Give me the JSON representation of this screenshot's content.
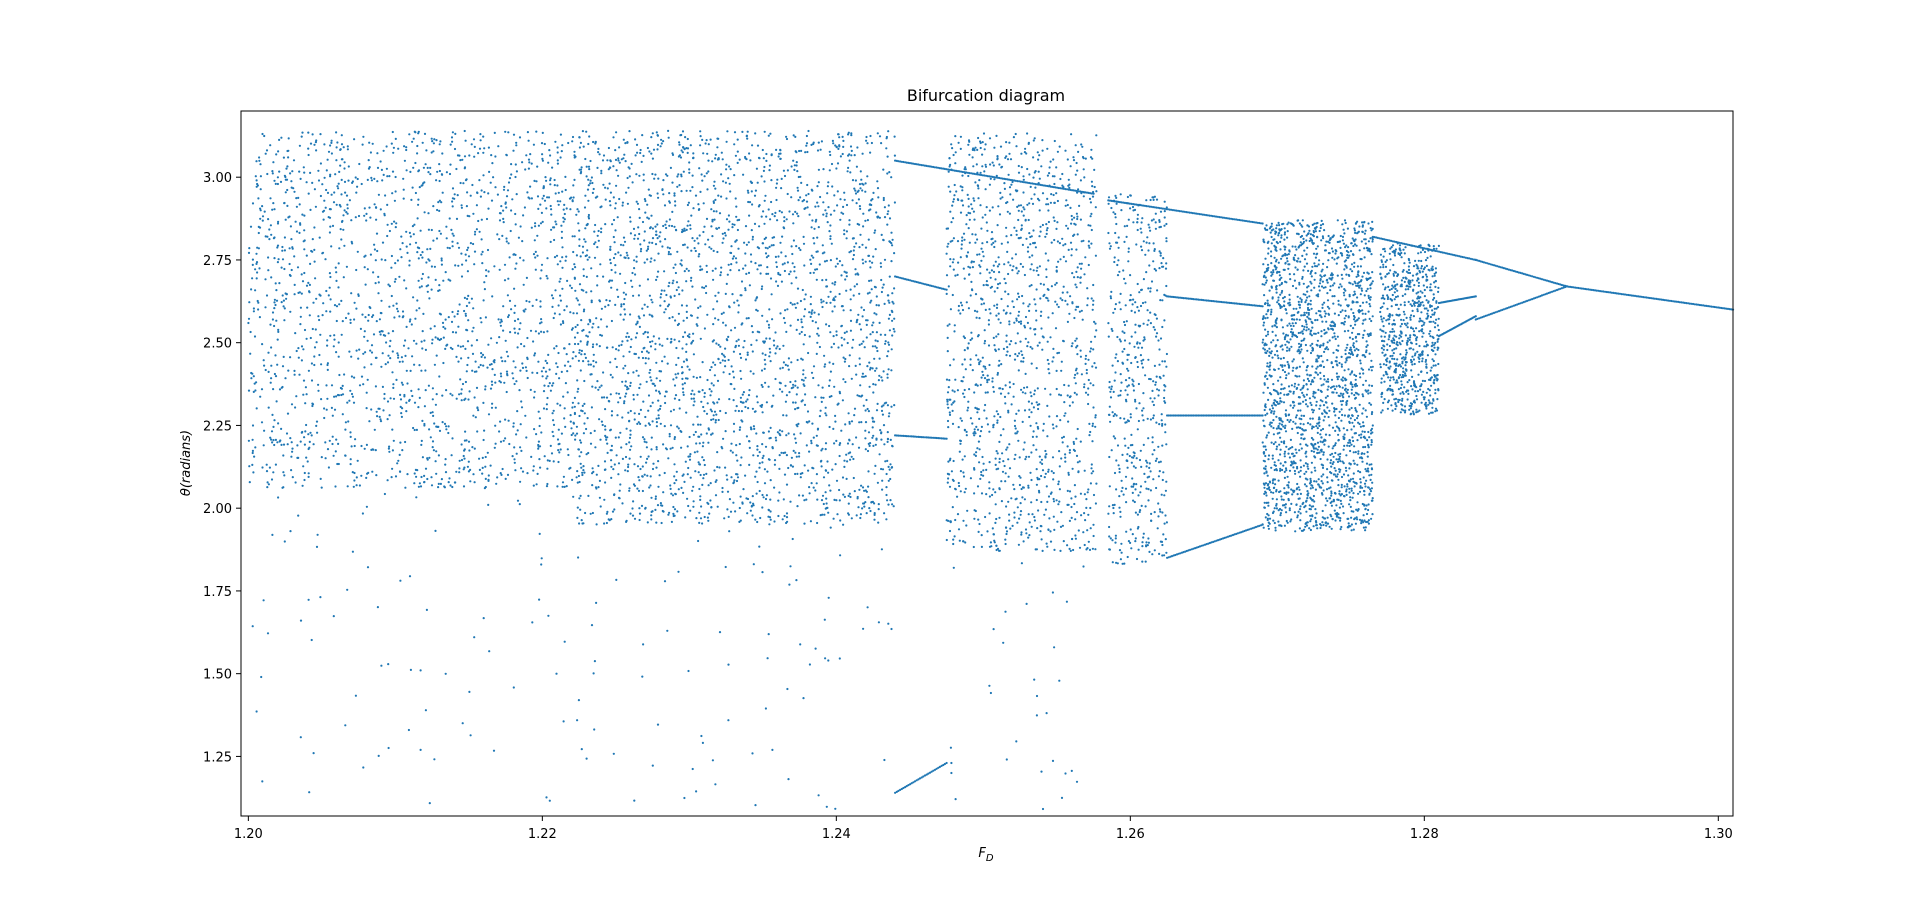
{
  "chart_data": {
    "type": "scatter",
    "title": "Bifurcation diagram",
    "xlabel": "F_D",
    "ylabel": "θ(radians)",
    "xlim": [
      1.1995,
      1.301
    ],
    "ylim": [
      1.07,
      3.2
    ],
    "x_ticks": [
      1.2,
      1.22,
      1.24,
      1.26,
      1.28,
      1.3
    ],
    "x_tick_labels": [
      "1.20",
      "1.22",
      "1.24",
      "1.26",
      "1.28",
      "1.30"
    ],
    "y_ticks": [
      1.25,
      1.5,
      1.75,
      2.0,
      2.25,
      2.5,
      2.75,
      3.0
    ],
    "y_tick_labels": [
      "1.25",
      "1.50",
      "1.75",
      "2.00",
      "2.25",
      "2.50",
      "2.75",
      "3.00"
    ],
    "grid": false,
    "marker_color": "#1f77b4",
    "chaotic_bands": [
      {
        "x": [
          1.2,
          1.222
        ],
        "y": [
          2.06,
          3.14
        ],
        "density": 1800,
        "tail_y": [
          1.08,
          2.06
        ],
        "tail_density": 70
      },
      {
        "x": [
          1.222,
          1.244
        ],
        "y": [
          1.95,
          3.14
        ],
        "density": 2600,
        "tail_y": [
          1.08,
          1.95
        ],
        "tail_density": 70
      },
      {
        "x": [
          1.2475,
          1.2577
        ],
        "y": [
          1.87,
          3.14
        ],
        "density": 1300,
        "tail_y": [
          1.08,
          1.87
        ],
        "tail_density": 30
      },
      {
        "x": [
          1.2585,
          1.2625
        ],
        "y": [
          1.83,
          2.95
        ],
        "density": 500
      },
      {
        "x": [
          1.269,
          1.2765
        ],
        "y": [
          1.93,
          2.87
        ],
        "density": 2000
      },
      {
        "x": [
          1.277,
          1.281
        ],
        "y": [
          2.28,
          2.8
        ],
        "density": 700
      }
    ],
    "branches": [
      {
        "x": [
          1.244,
          1.2575
        ],
        "y": [
          3.05,
          2.95
        ]
      },
      {
        "x": [
          1.244,
          1.2475
        ],
        "y": [
          2.7,
          2.66
        ]
      },
      {
        "x": [
          1.244,
          1.2475
        ],
        "y": [
          2.22,
          2.21
        ]
      },
      {
        "x": [
          1.244,
          1.2475
        ],
        "y": [
          1.14,
          1.23
        ]
      },
      {
        "x": [
          1.2585,
          1.269
        ],
        "y": [
          2.93,
          2.86
        ]
      },
      {
        "x": [
          1.2625,
          1.269
        ],
        "y": [
          2.64,
          2.61
        ]
      },
      {
        "x": [
          1.2625,
          1.269
        ],
        "y": [
          2.28,
          2.28
        ]
      },
      {
        "x": [
          1.2625,
          1.269
        ],
        "y": [
          1.85,
          1.95
        ]
      },
      {
        "x": [
          1.2765,
          1.2835
        ],
        "y": [
          2.82,
          2.75
        ]
      },
      {
        "x": [
          1.281,
          1.2835
        ],
        "y": [
          2.62,
          2.64
        ]
      },
      {
        "x": [
          1.281,
          1.2835
        ],
        "y": [
          2.52,
          2.58
        ]
      },
      {
        "x": [
          1.2835,
          1.2897
        ],
        "y": [
          2.75,
          2.67
        ]
      },
      {
        "x": [
          1.2835,
          1.2897
        ],
        "y": [
          2.57,
          2.67
        ]
      },
      {
        "x": [
          1.2897,
          1.301
        ],
        "y": [
          2.67,
          2.6
        ]
      }
    ]
  }
}
